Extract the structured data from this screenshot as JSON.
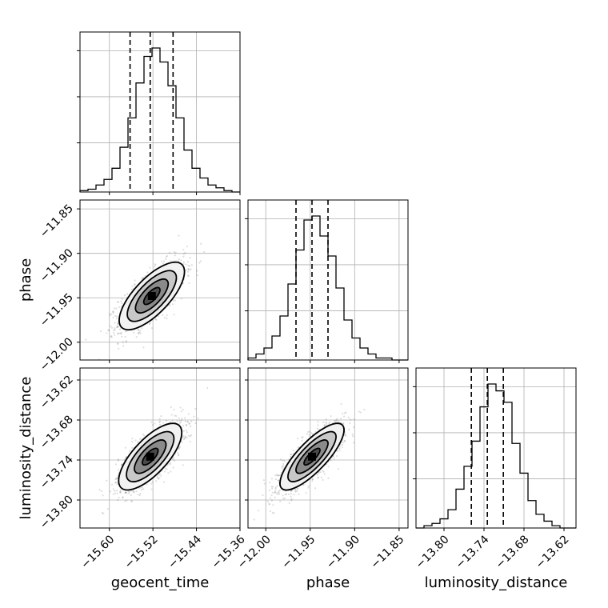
{
  "chart_data": {
    "type": "corner",
    "grid": true,
    "parameters": [
      "geocent_time",
      "phase",
      "luminosity_distance"
    ],
    "axis_labels": {
      "x": [
        "geocent_time",
        "phase",
        "luminosity_distance"
      ],
      "y": [
        "phase",
        "luminosity_distance"
      ]
    },
    "ranges": {
      "geocent_time": [
        -15.654,
        -15.36
      ],
      "phase": [
        -12.02,
        -11.84
      ],
      "luminosity_distance": [
        -13.842,
        -13.602
      ]
    },
    "ticks": {
      "geocent_time": [
        "-15.60",
        "-15.52",
        "-15.44",
        "-15.36"
      ],
      "phase_x": [
        "-12.00",
        "-11.95",
        "-11.90",
        "-11.85"
      ],
      "phase_y": [
        "-11.85",
        "-11.90",
        "-11.95",
        "-12.00"
      ],
      "luminosity_distance_x": [
        "-13.80",
        "-13.74",
        "-13.68",
        "-13.62"
      ],
      "luminosity_distance_y": [
        "-13.62",
        "-13.68",
        "-13.74",
        "-13.80"
      ]
    },
    "quantiles": {
      "geocent_time": [
        -15.562,
        -15.525,
        -15.483
      ],
      "phase": [
        -11.966,
        -11.948,
        -11.93
      ],
      "luminosity_distance": [
        -13.759,
        -13.735,
        -13.711
      ]
    },
    "histograms": {
      "geocent_time": {
        "edges_start": -15.654,
        "bin_width": 0.0147,
        "counts": [
          1,
          2,
          5,
          9,
          17,
          32,
          53,
          78,
          97,
          103,
          93,
          76,
          53,
          30,
          17,
          10,
          5,
          3,
          1,
          0
        ]
      },
      "phase": {
        "edges_start": -12.02,
        "bin_width": 0.009,
        "counts": [
          1,
          3,
          6,
          12,
          22,
          38,
          55,
          70,
          72,
          62,
          52,
          36,
          20,
          11,
          6,
          3,
          1,
          1,
          0,
          0
        ]
      },
      "luminosity_distance": {
        "edges_start": -13.842,
        "bin_width": 0.012,
        "counts": [
          0,
          1,
          2,
          4,
          8,
          17,
          27,
          38,
          53,
          63,
          60,
          55,
          37,
          24,
          12,
          6,
          3,
          1,
          0,
          0
        ]
      }
    },
    "contours": {
      "phase_vs_geocent_time": {
        "mean_x": -15.522,
        "mean_y": -11.948,
        "sd_x": 0.03,
        "sd_y": 0.019,
        "rho": 0.72
      },
      "luminosity_distance_vs_geocent_time": {
        "mean_x": -15.525,
        "mean_y": -13.735,
        "sd_x": 0.029,
        "sd_y": 0.025,
        "rho": 0.72
      },
      "luminosity_distance_vs_phase": {
        "mean_x": -11.948,
        "mean_y": -13.735,
        "sd_x": 0.018,
        "sd_y": 0.025,
        "rho": 0.8
      }
    },
    "contour_levels_sigma": [
      0.5,
      1.0,
      1.5,
      2.0
    ]
  }
}
